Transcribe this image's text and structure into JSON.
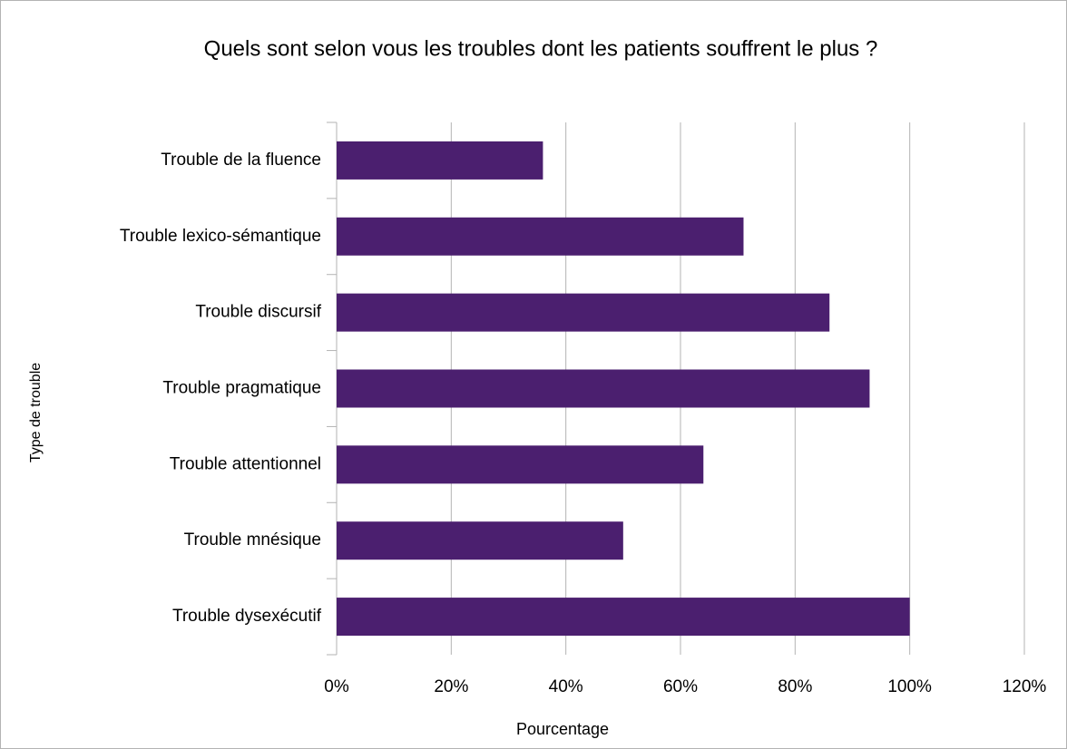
{
  "chart_data": {
    "type": "bar",
    "orientation": "horizontal",
    "title": "Quels sont selon vous les troubles dont les patients souffrent le plus ?",
    "x_label": "Pourcentage",
    "y_label": "Type de trouble",
    "categories": [
      "Trouble de la fluence",
      "Trouble lexico-sémantique",
      "Trouble discursif",
      "Trouble pragmatique",
      "Trouble attentionnel",
      "Trouble mnésique",
      "Trouble dysexécutif"
    ],
    "values": [
      36,
      71,
      86,
      93,
      64,
      50,
      100
    ],
    "color": "#4b1f6f",
    "xlim": [
      0,
      120
    ],
    "xticks": [
      {
        "value": 0,
        "label": "0%"
      },
      {
        "value": 20,
        "label": "20%"
      },
      {
        "value": 40,
        "label": "40%"
      },
      {
        "value": 60,
        "label": "60%"
      },
      {
        "value": 80,
        "label": "80%"
      },
      {
        "value": 100,
        "label": "100%"
      },
      {
        "value": 120,
        "label": "120%"
      }
    ],
    "grid": true
  }
}
